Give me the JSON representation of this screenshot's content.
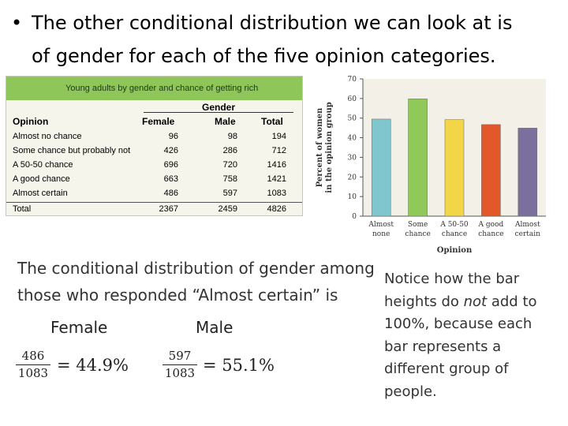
{
  "title": {
    "bullet": "•",
    "line1": "The other conditional distribution we can look at is",
    "line2": "of gender for each of the five opinion categories."
  },
  "table": {
    "heading": "Young adults by gender and chance of getting rich",
    "gender_header": "Gender",
    "columns": [
      "Opinion",
      "Female",
      "Male",
      "Total"
    ],
    "rows": [
      {
        "opinion": "Almost no chance",
        "female": "96",
        "male": "98",
        "total": "194"
      },
      {
        "opinion": "Some chance but probably not",
        "female": "426",
        "male": "286",
        "total": "712"
      },
      {
        "opinion": "A 50-50 chance",
        "female": "696",
        "male": "720",
        "total": "1416"
      },
      {
        "opinion": "A good chance",
        "female": "663",
        "male": "758",
        "total": "1421"
      },
      {
        "opinion": "Almost certain",
        "female": "486",
        "male": "597",
        "total": "1083"
      },
      {
        "opinion": "Total",
        "female": "2367",
        "male": "2459",
        "total": "4826"
      }
    ]
  },
  "chart_data": {
    "type": "bar",
    "categories": [
      [
        "Almost",
        "none"
      ],
      [
        "Some",
        "chance"
      ],
      [
        "A 50-50",
        "chance"
      ],
      [
        "A good",
        "chance"
      ],
      [
        "Almost",
        "certain"
      ]
    ],
    "values": [
      49.5,
      59.8,
      49.2,
      46.7,
      44.9
    ],
    "colors": [
      "#7fc6cf",
      "#8ec95a",
      "#f2d648",
      "#e2582b",
      "#7b6f9e"
    ],
    "ylabel": [
      "Percent of women",
      "in the opinion group"
    ],
    "xlabel": "Opinion",
    "ylim": [
      0,
      70
    ],
    "yticks": [
      0,
      10,
      20,
      30,
      40,
      50,
      60,
      70
    ],
    "background": "#f3f1e7"
  },
  "conditional": {
    "line1": "The conditional distribution of gender among",
    "line2": "those who responded “Almost certain” is",
    "female_label": "Female",
    "male_label": "Male",
    "female_num": "486",
    "female_den": "1083",
    "female_result": "= 44.9%",
    "male_num": "597",
    "male_den": "1083",
    "male_result": "= 55.1%"
  },
  "notice": {
    "part1": "Notice how the bar heights do ",
    "emphasis": "not",
    "part2": " add to 100%, because each bar represents a different group of people."
  }
}
